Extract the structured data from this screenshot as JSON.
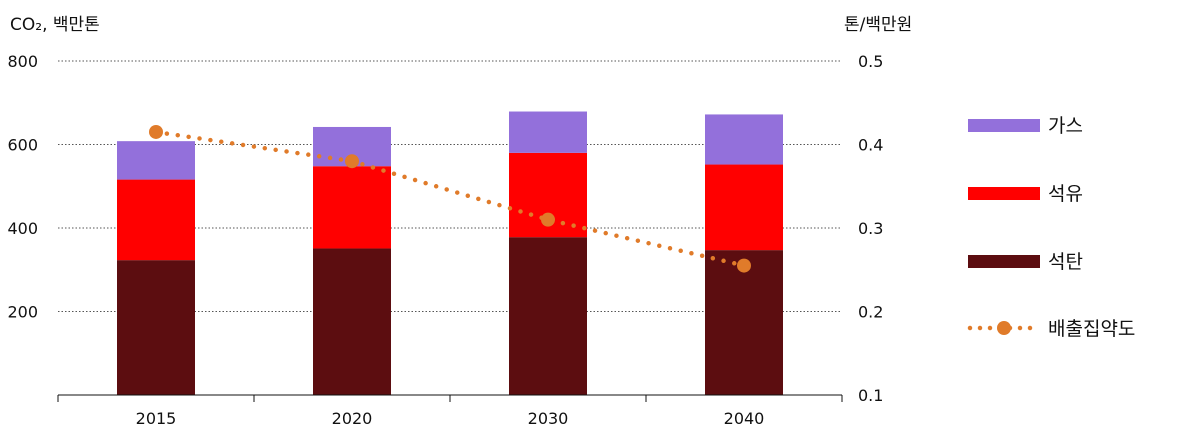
{
  "chart_data": {
    "type": "bar",
    "stacked": true,
    "categories": [
      "2015",
      "2020",
      "2030",
      "2040"
    ],
    "y_left": {
      "unit_label": "CO₂, 백만톤",
      "ylim": [
        0,
        800
      ],
      "ticks": [
        "200",
        "400",
        "600",
        "800"
      ]
    },
    "y_right": {
      "unit_label": "톤/백만원",
      "ylim": [
        0.1,
        0.5
      ],
      "ticks": [
        "0.1",
        "0.2",
        "0.3",
        "0.4",
        "0.5"
      ]
    },
    "series": [
      {
        "name": "석탄",
        "color": "#5c0d10",
        "values": [
          323,
          351,
          378,
          347
        ]
      },
      {
        "name": "석유",
        "color": "#ff0000",
        "values": [
          193,
          197,
          202,
          205
        ]
      },
      {
        "name": "가스",
        "color": "#9370db",
        "values": [
          92,
          94,
          99,
          120
        ]
      }
    ],
    "line": {
      "name": "배출집약도",
      "color": "#e07b2a",
      "axis": "right",
      "style": "dotted",
      "values": [
        0.415,
        0.38,
        0.31,
        0.255
      ]
    },
    "legend": {
      "placement": "right",
      "order": [
        "가스",
        "석유",
        "석탄",
        "배출집약도"
      ]
    },
    "grid": {
      "horizontal": true,
      "style": "dotted"
    }
  }
}
